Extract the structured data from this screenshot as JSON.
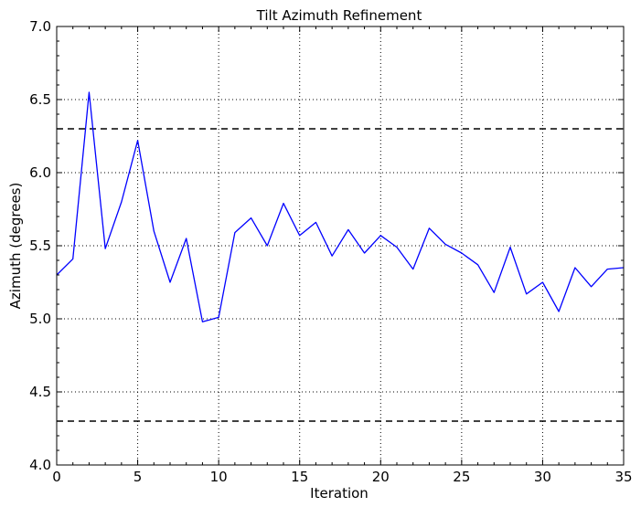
{
  "chart_data": {
    "type": "line",
    "title": "Tilt Azimuth Refinement",
    "xlabel": "Iteration",
    "ylabel": "Azimuth (degrees)",
    "xlim": [
      0,
      35
    ],
    "ylim": [
      4.0,
      7.0
    ],
    "xticks": [
      0,
      5,
      10,
      15,
      20,
      25,
      30,
      35
    ],
    "yticks": [
      4.0,
      4.5,
      5.0,
      5.5,
      6.0,
      6.5,
      7.0
    ],
    "xtick_labels": [
      "0",
      "5",
      "10",
      "15",
      "20",
      "25",
      "30",
      "35"
    ],
    "ytick_labels": [
      "4.0",
      "4.5",
      "5.0",
      "5.5",
      "6.0",
      "6.5",
      "7.0"
    ],
    "grid": true,
    "series": [
      {
        "color": "#0000ff",
        "style": "solid",
        "x": [
          0,
          1,
          2,
          3,
          4,
          5,
          6,
          7,
          8,
          9,
          10,
          11,
          12,
          13,
          14,
          15,
          16,
          17,
          18,
          19,
          20,
          21,
          22,
          23,
          24,
          25,
          26,
          27,
          28,
          29,
          30,
          31,
          32,
          33,
          34,
          35
        ],
        "values": [
          5.3,
          5.41,
          6.55,
          5.48,
          5.8,
          6.22,
          5.6,
          5.25,
          5.55,
          4.98,
          5.01,
          5.59,
          5.69,
          5.5,
          5.79,
          5.57,
          5.66,
          5.43,
          5.61,
          5.45,
          5.57,
          5.49,
          5.34,
          5.62,
          5.51,
          5.45,
          5.37,
          5.18,
          5.49,
          5.17,
          5.25,
          5.05,
          5.35,
          5.22,
          5.34,
          5.35
        ]
      }
    ],
    "hlines": [
      {
        "y": 6.3,
        "color": "#000000",
        "style": "dashed"
      },
      {
        "y": 4.3,
        "color": "#000000",
        "style": "dashed"
      }
    ]
  }
}
